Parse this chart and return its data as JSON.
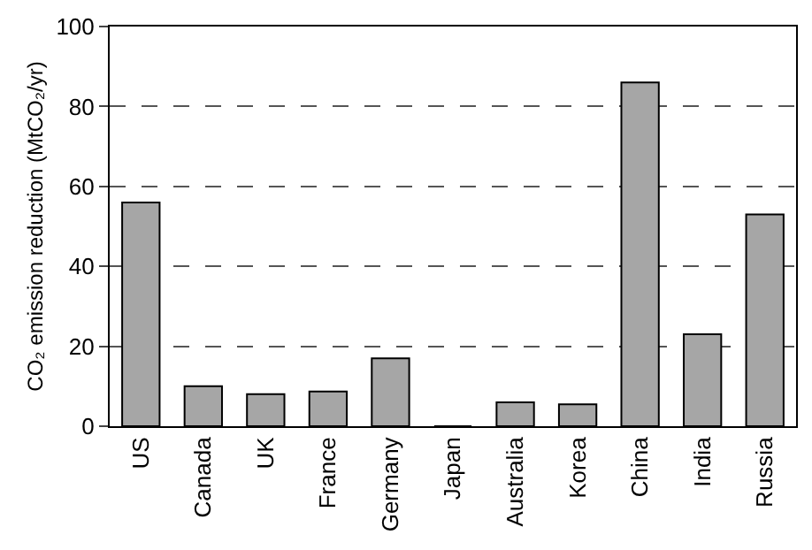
{
  "chart_data": {
    "type": "bar",
    "ylabel": "CO₂ emission reduction (MtCO₂/yr)",
    "categories": [
      "US",
      "Canada",
      "UK",
      "France",
      "Germany",
      "Japan",
      "Australia",
      "Korea",
      "China",
      "India",
      "Russia"
    ],
    "values": [
      56,
      10,
      8,
      8.7,
      17,
      0,
      6,
      5.5,
      86,
      23,
      53
    ],
    "color": "#a6a6a6",
    "ylim": [
      0,
      100
    ],
    "yticks": [
      0,
      20,
      40,
      60,
      80,
      100
    ],
    "grid": "y"
  }
}
